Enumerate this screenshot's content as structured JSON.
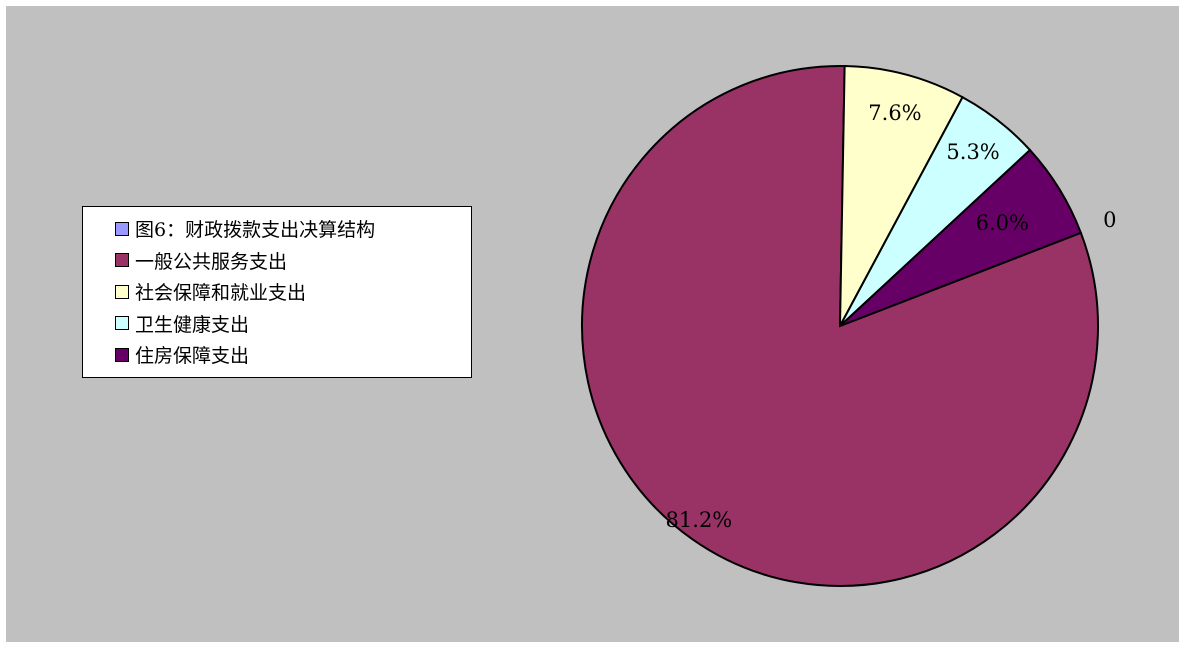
{
  "chart_data": {
    "type": "pie",
    "legend_position": "left",
    "categories": [
      "图6：财政拨款支出决算结构",
      "一般公共服务支出",
      "社会保障和就业支出",
      "卫生健康支出",
      "住房保障支出"
    ],
    "values": [
      0,
      81.2,
      7.6,
      5.3,
      6.0
    ],
    "data_labels": [
      "0",
      "81.2%",
      "7.6%",
      "5.3%",
      "6.0%"
    ],
    "colors": [
      "#9999ff",
      "#993366",
      "#ffffcc",
      "#ccffff",
      "#660066"
    ],
    "background_color": "#c0c0c0"
  }
}
